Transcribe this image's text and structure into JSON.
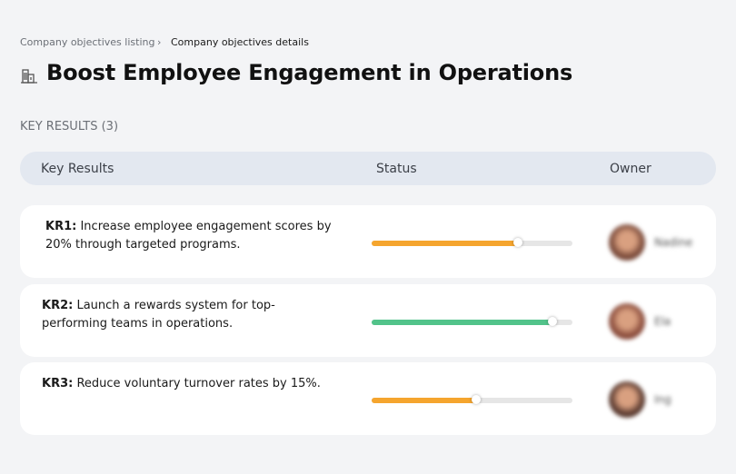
{
  "breadcrumb": {
    "parent": "Company objectives listing",
    "current": "Company objectives details"
  },
  "header": {
    "title": "Boost Employee Engagement in Operations"
  },
  "section_label": "KEY RESULTS (3)",
  "table": {
    "columns": [
      "Key Results",
      "Status",
      "Owner"
    ],
    "rows": [
      {
        "id": "KR1:",
        "text": "Increase employee engagement scores by 20% through targeted programs.",
        "progress": 73,
        "color": "#f5a52e",
        "owner": "Nadine",
        "avatar": "#7a4a3a"
      },
      {
        "id": "KR2:",
        "text": "Launch a rewards system for top-performing teams in operations.",
        "progress": 90,
        "color": "#52c38a",
        "owner": "Ela",
        "avatar": "#8a4c3c"
      },
      {
        "id": "KR3:",
        "text": "Reduce voluntary turnover rates by 15%.",
        "progress": 52,
        "color": "#f5a52e",
        "owner": "Ing",
        "avatar": "#5a3a30"
      }
    ]
  }
}
